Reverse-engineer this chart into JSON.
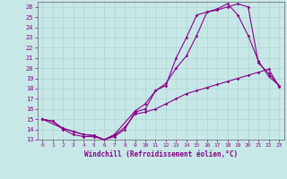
{
  "xlabel": "Windchill (Refroidissement éolien,°C)",
  "background_color": "#c8e8e8",
  "line_color": "#880088",
  "xlim": [
    -0.5,
    23.5
  ],
  "ylim": [
    13,
    26.5
  ],
  "xticks": [
    0,
    1,
    2,
    3,
    4,
    5,
    6,
    7,
    8,
    9,
    10,
    11,
    12,
    13,
    14,
    15,
    16,
    17,
    18,
    19,
    20,
    21,
    22,
    23
  ],
  "yticks": [
    13,
    14,
    15,
    16,
    17,
    18,
    19,
    20,
    21,
    22,
    23,
    24,
    25,
    26
  ],
  "line1_x": [
    0,
    1,
    2,
    3,
    4,
    5,
    6,
    7,
    8,
    9,
    10,
    11,
    12,
    13,
    14,
    15,
    16,
    17,
    18,
    19,
    20,
    21,
    22,
    23
  ],
  "line1_y": [
    15.0,
    14.8,
    14.1,
    13.8,
    13.5,
    13.4,
    13.0,
    13.3,
    14.0,
    15.7,
    16.0,
    17.8,
    18.3,
    21.0,
    23.0,
    25.2,
    25.5,
    25.7,
    26.0,
    26.3,
    26.0,
    20.5,
    19.5,
    18.3
  ],
  "line2_x": [
    0,
    1,
    2,
    3,
    4,
    5,
    6,
    7,
    8,
    9,
    10,
    11,
    12,
    13,
    14,
    15,
    16,
    17,
    18,
    19,
    20,
    21,
    22,
    23
  ],
  "line2_y": [
    15.0,
    14.8,
    14.0,
    13.5,
    13.3,
    13.3,
    13.0,
    13.4,
    14.2,
    15.5,
    15.7,
    16.0,
    16.5,
    17.0,
    17.5,
    17.8,
    18.1,
    18.4,
    18.7,
    19.0,
    19.3,
    19.6,
    19.9,
    18.2
  ],
  "line3_x": [
    0,
    2,
    3,
    4,
    5,
    6,
    7,
    9,
    10,
    11,
    12,
    13,
    14,
    15,
    16,
    17,
    18,
    19,
    20,
    21,
    22,
    23
  ],
  "line3_y": [
    15.0,
    14.1,
    13.8,
    13.5,
    13.4,
    13.0,
    13.5,
    15.8,
    16.5,
    17.8,
    18.5,
    20.0,
    21.2,
    23.2,
    25.5,
    25.8,
    26.3,
    25.2,
    23.2,
    20.7,
    19.2,
    18.3
  ]
}
